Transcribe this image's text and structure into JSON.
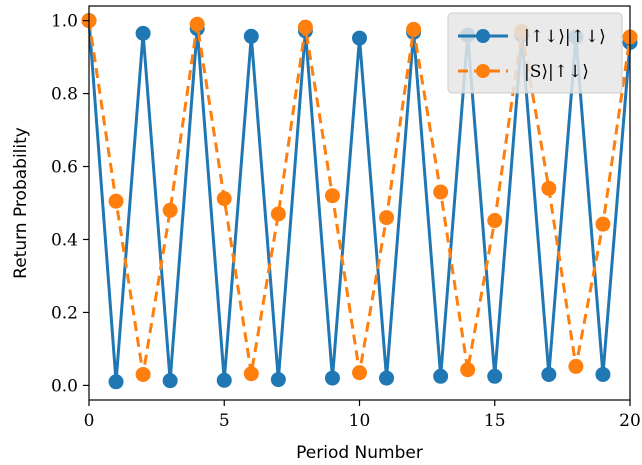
{
  "chart_data": {
    "type": "line",
    "xlabel": "Period Number",
    "ylabel": "Return Probability",
    "xlim": [
      0,
      20
    ],
    "ylim": [
      -0.04,
      1.04
    ],
    "xticks": [
      0,
      5,
      10,
      15,
      20
    ],
    "yticks": [
      0.0,
      0.2,
      0.4,
      0.6,
      0.8,
      1.0
    ],
    "xtick_labels": [
      "0",
      "5",
      "10",
      "15",
      "20"
    ],
    "ytick_labels": [
      "0.0",
      "0.2",
      "0.4",
      "0.6",
      "0.8",
      "1.0"
    ],
    "grid": false,
    "legend_position": "top-right",
    "x": [
      0,
      1,
      2,
      3,
      4,
      5,
      6,
      7,
      8,
      9,
      10,
      11,
      12,
      13,
      14,
      15,
      16,
      17,
      18,
      19,
      20
    ],
    "series": [
      {
        "name": "|↑↓⟩|↑↓⟩",
        "color": "#1f77b4",
        "linestyle": "solid",
        "values": [
          1.0,
          0.01,
          0.965,
          0.013,
          0.978,
          0.014,
          0.957,
          0.016,
          0.972,
          0.02,
          0.952,
          0.02,
          0.968,
          0.025,
          0.96,
          0.025,
          0.96,
          0.03,
          0.955,
          0.03,
          0.94
        ]
      },
      {
        "name": "|S⟩|↑↓⟩",
        "color": "#ff7f0e",
        "linestyle": "dashed",
        "values": [
          1.0,
          0.505,
          0.03,
          0.48,
          0.99,
          0.512,
          0.032,
          0.47,
          0.982,
          0.52,
          0.035,
          0.46,
          0.976,
          0.53,
          0.043,
          0.452,
          0.97,
          0.54,
          0.052,
          0.442,
          0.955
        ]
      }
    ]
  }
}
